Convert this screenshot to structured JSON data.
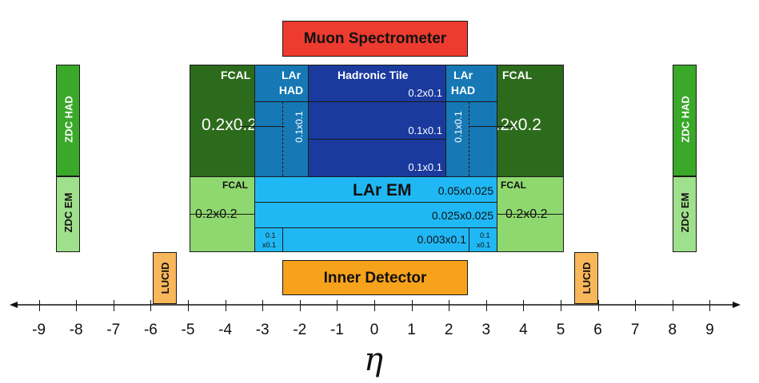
{
  "muon": "Muon Spectrometer",
  "inner": "Inner Detector",
  "lucid": "LUCID",
  "zdc": {
    "had": "ZDC HAD",
    "em": "ZDC EM"
  },
  "fcal": {
    "label": "FCAL",
    "had_gran": "0.2x0.2",
    "em_gran": "0.2x0.2"
  },
  "larhad": {
    "label": "LAr HAD",
    "gran": "0.1x0.1"
  },
  "tile": {
    "label": "Hadronic Tile",
    "rows": [
      "0.2x0.1",
      "0.1x0.1",
      "0.1x0.1"
    ]
  },
  "larem": {
    "label": "LAr EM",
    "rows": [
      "0.05x0.025",
      "0.025x0.025",
      "0.003x0.1"
    ],
    "end_gran_1": "0.1",
    "end_gran_2": "x0.1"
  },
  "axis": {
    "symbol": "η",
    "ticks": [
      "-9",
      "-8",
      "-7",
      "-6",
      "-5",
      "-4",
      "-3",
      "-2",
      "-1",
      "0",
      "1",
      "2",
      "3",
      "4",
      "5",
      "6",
      "7",
      "8",
      "9"
    ]
  },
  "colors": {
    "muon": "#ee3b2f",
    "inner": "#f7a21b",
    "lucid": "#f8b75a",
    "zdc_had": "#3aa829",
    "zdc_em": "#9fe08c",
    "fcal_had": "#2d6b1c",
    "fcal_em": "#8fd86f",
    "larhad": "#1678b4",
    "tile": "#1a3a9e",
    "larem": "#20b8f4"
  }
}
